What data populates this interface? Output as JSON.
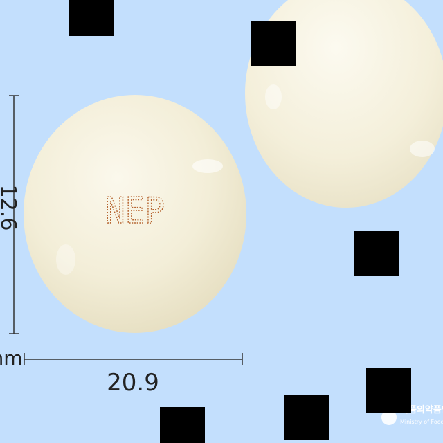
{
  "image": {
    "subject": "pill",
    "background_color": "#c3dffd",
    "pill_color": "#f4efdb",
    "imprint_color": "#b5632e"
  },
  "pill_front": {
    "imprint": "NEP"
  },
  "dimensions": {
    "height_value": "12.6",
    "width_value": "20.9",
    "unit": "mm"
  },
  "watermark": {
    "korean_text": "식품의약품안전처",
    "english_text": "Ministry of Food and Drug Safety"
  }
}
